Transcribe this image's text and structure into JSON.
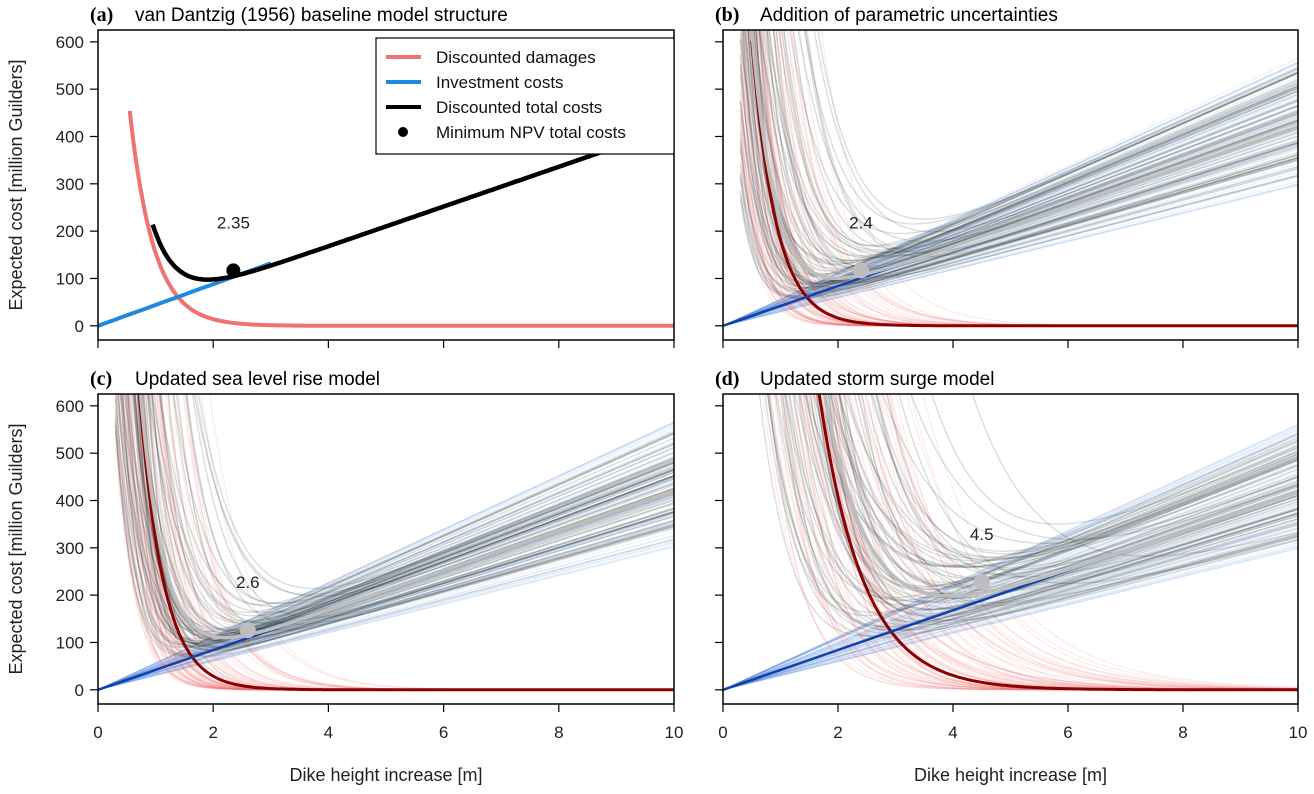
{
  "chart_data": [
    {
      "type": "line",
      "panel": "a",
      "letter": "(a)",
      "title": "van Dantzig (1956) baseline model structure",
      "xlabel": "",
      "ylabel": "Expected cost [million Guilders]",
      "xlim": [
        0,
        10
      ],
      "ylim": [
        -30,
        625
      ],
      "xticks": [],
      "yticks": [
        0,
        100,
        200,
        300,
        400,
        500,
        600
      ],
      "optimum": {
        "x": 2.35,
        "y": 117,
        "label": "2.35"
      },
      "damages_params": {
        "a": 1700,
        "k": 2.4
      },
      "investment_params": {
        "slope": 44
      },
      "total_params": {
        "slope": 42
      },
      "legend": {
        "position": "top-right",
        "entries": [
          {
            "label": "Discounted damages",
            "color": "#f07272",
            "kind": "line"
          },
          {
            "label": "Investment costs",
            "color": "#1e88e5",
            "kind": "line"
          },
          {
            "label": "Discounted total costs",
            "color": "#000000",
            "kind": "line"
          },
          {
            "label": "Minimum NPV total costs",
            "color": "#000000",
            "kind": "point"
          }
        ]
      },
      "ensemble": false
    },
    {
      "type": "line",
      "panel": "b",
      "letter": "(b)",
      "title": "Addition of parametric uncertainties",
      "xlabel": "",
      "ylabel": "",
      "xlim": [
        0,
        10
      ],
      "ylim": [
        -30,
        625
      ],
      "xticks": [],
      "yticks": [
        0,
        100,
        200,
        300,
        400,
        500,
        600
      ],
      "optimum": {
        "x": 2.4,
        "y": 117,
        "label": "2.4"
      },
      "damages_params": {
        "a": 2000,
        "k": 2.4
      },
      "investment_params": {
        "slope": 42
      },
      "ensemble": true
    },
    {
      "type": "line",
      "panel": "c",
      "letter": "(c)",
      "title": "Updated sea level rise model",
      "xlabel": "Dike height increase [m]",
      "ylabel": "Expected cost [million Guilders]",
      "xlim": [
        0,
        10
      ],
      "ylim": [
        -30,
        625
      ],
      "xticks": [
        0,
        2,
        4,
        6,
        8,
        10
      ],
      "yticks": [
        0,
        100,
        200,
        300,
        400,
        500,
        600
      ],
      "optimum": {
        "x": 2.6,
        "y": 126,
        "label": "2.6"
      },
      "damages_params": {
        "a": 3500,
        "k": 2.4
      },
      "investment_params": {
        "slope": 42
      },
      "ensemble": true
    },
    {
      "type": "line",
      "panel": "d",
      "letter": "(d)",
      "title": "Updated storm surge model",
      "xlabel": "Dike height increase [m]",
      "ylabel": "",
      "xlim": [
        0,
        10
      ],
      "ylim": [
        -30,
        625
      ],
      "xticks": [
        0,
        2,
        4,
        6,
        8,
        10
      ],
      "yticks": [
        0,
        100,
        200,
        300,
        400,
        500,
        600
      ],
      "optimum": {
        "x": 4.5,
        "y": 228,
        "label": "4.5"
      },
      "damages_params": {
        "a": 5500,
        "k": 1.3
      },
      "investment_params": {
        "slope": 42
      },
      "ensemble": true
    }
  ]
}
